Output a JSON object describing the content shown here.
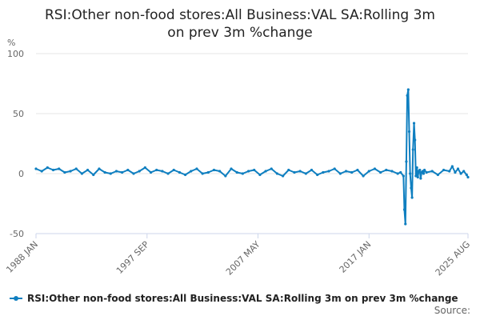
{
  "colors": {
    "series": "#0f7fc0",
    "grid": "#e6e6e6",
    "axis": "#ccd6eb",
    "tick_text": "#666666"
  },
  "chart_data": {
    "type": "line",
    "title_line1": "RSI:Other non-food stores:All Business:VAL SA:Rolling 3m",
    "title_line2": "on prev 3m %change",
    "unit_label": "%",
    "ylim": [
      -50,
      100
    ],
    "yticks": [
      100,
      50,
      0,
      -50
    ],
    "ytick_labels": [
      "100",
      "50",
      "0",
      "-50"
    ],
    "xlim": [
      1988.0,
      2025.62
    ],
    "xticks": [
      {
        "x": 1988.0,
        "label": "1988 JAN"
      },
      {
        "x": 1997.67,
        "label": "1997 SEP"
      },
      {
        "x": 2007.33,
        "label": "2007 MAY"
      },
      {
        "x": 2017.0,
        "label": "2017 JAN"
      },
      {
        "x": 2025.62,
        "label": "2025 AUG"
      }
    ],
    "grid": true,
    "legend_placement": "bottom",
    "series": [
      {
        "name": "RSI:Other non-food stores:All Business:VAL SA:Rolling 3m on prev 3m %change",
        "x": [
          1988.0,
          1988.5,
          1989.0,
          1989.5,
          1990.0,
          1990.5,
          1991.0,
          1991.5,
          1992.0,
          1992.5,
          1993.0,
          1993.5,
          1994.0,
          1994.5,
          1995.0,
          1995.5,
          1996.0,
          1996.5,
          1997.0,
          1997.5,
          1998.0,
          1998.5,
          1999.0,
          1999.5,
          2000.0,
          2000.5,
          2001.0,
          2001.5,
          2002.0,
          2002.5,
          2003.0,
          2003.5,
          2004.0,
          2004.5,
          2005.0,
          2005.5,
          2006.0,
          2006.5,
          2007.0,
          2007.5,
          2008.0,
          2008.5,
          2009.0,
          2009.5,
          2010.0,
          2010.5,
          2011.0,
          2011.5,
          2012.0,
          2012.5,
          2013.0,
          2013.5,
          2014.0,
          2014.5,
          2015.0,
          2015.5,
          2016.0,
          2016.5,
          2017.0,
          2017.5,
          2018.0,
          2018.5,
          2019.0,
          2019.5,
          2019.75,
          2020.0,
          2020.08,
          2020.17,
          2020.25,
          2020.33,
          2020.42,
          2020.5,
          2020.58,
          2020.67,
          2020.75,
          2020.83,
          2020.92,
          2021.0,
          2021.08,
          2021.17,
          2021.25,
          2021.33,
          2021.42,
          2021.5,
          2021.58,
          2021.67,
          2021.75,
          2021.83,
          2022.0,
          2022.5,
          2023.0,
          2023.5,
          2024.0,
          2024.25,
          2024.5,
          2024.75,
          2025.0,
          2025.25,
          2025.5,
          2025.62
        ],
        "values": [
          4,
          2,
          5,
          3,
          4,
          1,
          2,
          4,
          0,
          3,
          -1,
          4,
          1,
          0,
          2,
          1,
          3,
          0,
          2,
          5,
          1,
          3,
          2,
          0,
          3,
          1,
          -1,
          2,
          4,
          0,
          1,
          3,
          2,
          -2,
          4,
          1,
          0,
          2,
          3,
          -1,
          2,
          4,
          0,
          -2,
          3,
          1,
          2,
          0,
          3,
          -1,
          1,
          2,
          4,
          0,
          2,
          1,
          3,
          -2,
          2,
          4,
          1,
          3,
          2,
          0,
          1,
          -2,
          -30,
          -42,
          10,
          65,
          70,
          35,
          0,
          -12,
          -20,
          20,
          42,
          28,
          -2,
          5,
          -3,
          2,
          3,
          -4,
          1,
          2,
          0,
          3,
          1,
          2,
          -1,
          3,
          2,
          6,
          1,
          4,
          0,
          2,
          -1,
          -3
        ]
      }
    ],
    "legend_label": "RSI:Other non-food stores:All Business:VAL SA:Rolling 3m on prev 3m %change",
    "source_label": "Source:"
  }
}
